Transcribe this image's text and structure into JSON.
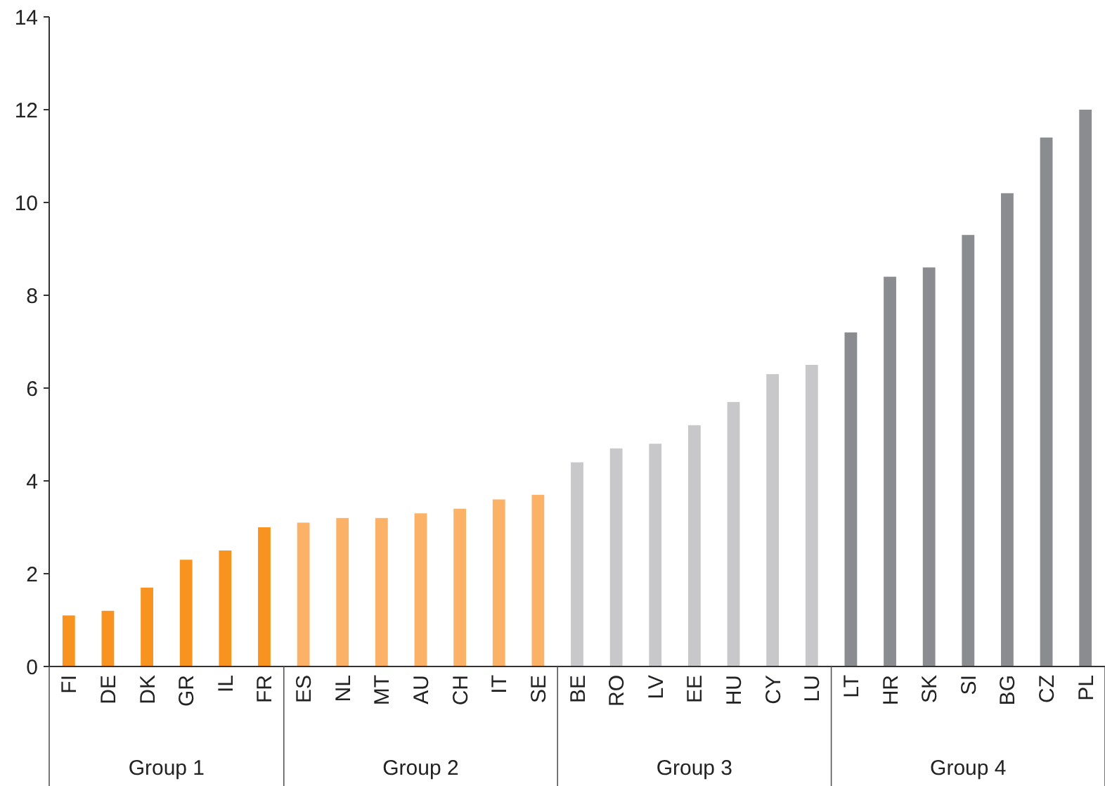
{
  "chart_data": {
    "type": "bar",
    "categories": [
      "FI",
      "DE",
      "DK",
      "GR",
      "IL",
      "FR",
      "ES",
      "NL",
      "MT",
      "AU",
      "CH",
      "IT",
      "SE",
      "BE",
      "RO",
      "LV",
      "EE",
      "HU",
      "CY",
      "LU",
      "LT",
      "HR",
      "SK",
      "SI",
      "BG",
      "CZ",
      "PL"
    ],
    "series": [
      {
        "color": "#f7931e",
        "values": [
          1.1,
          1.2,
          1.7,
          2.3,
          2.5,
          3.0,
          null,
          null,
          null,
          null,
          null,
          null,
          null,
          null,
          null,
          null,
          null,
          null,
          null,
          null,
          null,
          null,
          null,
          null,
          null,
          null,
          null
        ]
      },
      {
        "color": "#fbb267",
        "values": [
          null,
          null,
          null,
          null,
          null,
          null,
          3.1,
          3.2,
          3.2,
          3.3,
          3.4,
          3.6,
          3.7,
          null,
          null,
          null,
          null,
          null,
          null,
          null,
          null,
          null,
          null,
          null,
          null,
          null,
          null
        ]
      },
      {
        "color": "#c8c8ca",
        "values": [
          null,
          null,
          null,
          null,
          null,
          null,
          null,
          null,
          null,
          null,
          null,
          null,
          null,
          4.4,
          4.7,
          4.8,
          5.2,
          5.7,
          6.3,
          6.5,
          null,
          null,
          null,
          null,
          null,
          null,
          null
        ]
      },
      {
        "color": "#8b8c90",
        "values": [
          null,
          null,
          null,
          null,
          null,
          null,
          null,
          null,
          null,
          null,
          null,
          null,
          null,
          null,
          null,
          null,
          null,
          null,
          null,
          null,
          7.2,
          8.4,
          8.6,
          9.3,
          10.2,
          11.4,
          12.0
        ]
      }
    ],
    "annotations": [
      "Group 1",
      "Group 2",
      "Group 3",
      "Group 4"
    ],
    "ylim": [
      0,
      14
    ],
    "yticks": [
      0,
      2,
      4,
      6,
      8,
      10,
      12,
      14
    ],
    "grid": false,
    "legend": false
  }
}
